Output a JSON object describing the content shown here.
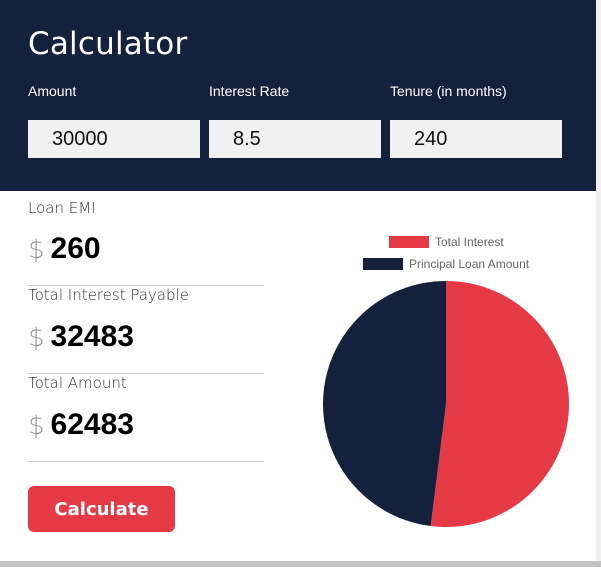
{
  "header": {
    "title": "Calculator",
    "fields": [
      {
        "label": "Amount",
        "value": "30000"
      },
      {
        "label": "Interest Rate",
        "value": "8.5"
      },
      {
        "label": "Tenure (in months)",
        "value": "240"
      }
    ]
  },
  "results": {
    "currency_symbol": "$",
    "items": [
      {
        "label": "Loan EMI",
        "value": "260"
      },
      {
        "label": "Total Interest Payable",
        "value": "32483"
      },
      {
        "label": "Total Amount",
        "value": "62483"
      }
    ]
  },
  "actions": {
    "calculate_label": "Calculate"
  },
  "colors": {
    "header_bg": "#14213d",
    "accent": "#e63946",
    "input_bg": "#f1f1f1"
  },
  "chart_data": {
    "type": "pie",
    "title": "",
    "labels": [
      "Total Interest",
      "Principal Loan Amount"
    ],
    "values": [
      32483,
      30000
    ],
    "colors": [
      "#e63946",
      "#14213d"
    ],
    "legend_position": "top"
  }
}
